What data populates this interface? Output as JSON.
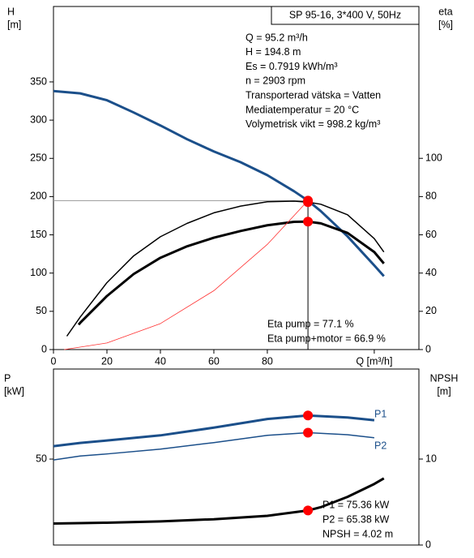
{
  "chart_data": [
    {
      "type": "line",
      "title": "SP 95-16, 3*400 V, 50Hz",
      "info": [
        "Q = 95.2 m³/h",
        "H = 194.8 m",
        "Es = 0.7919 kWh/m³",
        "n = 2903 rpm",
        "Transporterad vätska = Vatten",
        "Mediatemperatur = 20 °C",
        "Volymetrisk vikt = 998.2 kg/m³"
      ],
      "y_label": [
        "H",
        "[m]"
      ],
      "y2_label": [
        "eta",
        "[%]"
      ],
      "annotations": [
        "Eta pump = 77.1 %",
        "Eta pump+motor = 66.9 %"
      ],
      "xlim": [
        0,
        136.7
      ],
      "xticks": [
        0,
        20,
        40,
        60,
        80,
        {
          "value": 120,
          "label": "Q [m³/h]"
        }
      ],
      "ylim": [
        0,
        448.6
      ],
      "yticks": [
        0,
        50,
        100,
        150,
        200,
        250,
        300,
        350
      ],
      "y2lim": [
        0,
        179.4
      ],
      "y2ticks": [
        0,
        20,
        40,
        60,
        80,
        100
      ],
      "series": [
        {
          "color": "#1b4f8a",
          "style": "thick",
          "x": [
            0,
            10,
            20,
            30,
            40,
            50,
            60,
            70,
            80,
            90,
            95.2,
            100,
            110,
            120,
            123.6
          ],
          "values": [
            338,
            335,
            326,
            310,
            293,
            275,
            259,
            245,
            228,
            207,
            194.8,
            181,
            148,
            110,
            96
          ]
        },
        {
          "color": "#000000",
          "style": "thin",
          "axis": "y2",
          "x": [
            5,
            10,
            20,
            30,
            40,
            50,
            60,
            70,
            80,
            90,
            95.2,
            100,
            110,
            120,
            123.6
          ],
          "values": [
            7,
            17,
            35,
            49,
            59,
            66,
            71.5,
            75,
            77.3,
            77.6,
            77.1,
            76,
            70.5,
            58,
            51
          ]
        },
        {
          "color": "#000000",
          "style": "thick",
          "axis": "y2",
          "x": [
            9.4,
            10,
            20,
            30,
            40,
            50,
            60,
            70,
            80,
            90,
            95.2,
            100,
            110,
            120,
            123.6
          ],
          "values": [
            13,
            14,
            28,
            39.5,
            48,
            54,
            58.5,
            62,
            65,
            66.8,
            66.9,
            66,
            61,
            51,
            45
          ]
        },
        {
          "color": "#ff3030",
          "style": "hair",
          "x": [
            4,
            20,
            40,
            60,
            80,
            95.2
          ],
          "values": [
            0,
            8.6,
            34,
            77,
            137.5,
            194.8
          ]
        }
      ],
      "markers": [
        {
          "x": 95.2,
          "y": 194.8
        },
        {
          "x": 95.2,
          "y": 77.1,
          "axis": "y2"
        },
        {
          "x": 95.2,
          "y": 66.9,
          "axis": "y2"
        }
      ],
      "marker_color": "#ff0000",
      "guides": true
    },
    {
      "type": "line",
      "y_label": [
        "P",
        "[kW]"
      ],
      "y2_label": [
        "NPSH",
        "[m]"
      ],
      "annotations": [
        "P1 = 75.36 kW",
        "P2 = 65.38 kW",
        "NPSH = 4.02 m"
      ],
      "xlim": [
        0,
        136.7
      ],
      "ylim": [
        0,
        102.4
      ],
      "yticks": [
        50
      ],
      "y2lim": [
        0,
        20.47
      ],
      "y2ticks": [
        0,
        10
      ],
      "series": [
        {
          "name": "P1",
          "color": "#1b4f8a",
          "style": "thick",
          "x": [
            0,
            10,
            20,
            40,
            60,
            80,
            95.2,
            110,
            120
          ],
          "values": [
            57.5,
            59.4,
            60.8,
            63.8,
            68.3,
            73.3,
            75.36,
            74.2,
            72.6
          ]
        },
        {
          "name": "P2",
          "color": "#1b4f8a",
          "style": "thin",
          "x": [
            0,
            10,
            20,
            40,
            60,
            80,
            95.2,
            110,
            120
          ],
          "values": [
            49.5,
            51.8,
            53,
            55.8,
            59.6,
            63.8,
            65.38,
            64.2,
            62.4
          ]
        },
        {
          "color": "#000000",
          "style": "thick",
          "axis": "y2",
          "x": [
            0,
            10,
            20,
            40,
            60,
            80,
            95.2,
            100,
            110,
            120,
            123.6
          ],
          "values": [
            2.5,
            2.55,
            2.6,
            2.75,
            3.0,
            3.4,
            4.02,
            4.4,
            5.6,
            7.1,
            7.75
          ]
        }
      ],
      "markers": [
        {
          "x": 95.2,
          "y": 75.36
        },
        {
          "x": 95.2,
          "y": 65.38
        },
        {
          "x": 95.2,
          "y": 4.02,
          "axis": "y2"
        }
      ],
      "marker_color": "#ff0000"
    }
  ]
}
